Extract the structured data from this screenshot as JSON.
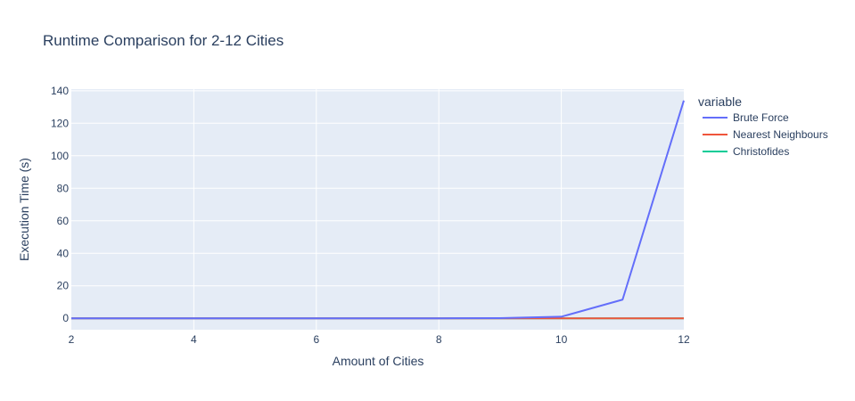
{
  "chart_data": {
    "type": "line",
    "title": "Runtime Comparison for 2-12 Cities",
    "xlabel": "Amount of Cities",
    "ylabel": "Execution Time (s)",
    "xlim": [
      2,
      12
    ],
    "ylim": [
      -7,
      141
    ],
    "x_ticks": [
      2,
      4,
      6,
      8,
      10,
      12
    ],
    "y_ticks": [
      0,
      20,
      40,
      60,
      80,
      100,
      120,
      140
    ],
    "grid": true,
    "legend": {
      "title": "variable",
      "placement": "right"
    },
    "x": [
      2,
      3,
      4,
      5,
      6,
      7,
      8,
      9,
      10,
      11,
      12
    ],
    "series": [
      {
        "name": "Brute Force",
        "color": "#636efa",
        "values": [
          0,
          0,
          0,
          0,
          0,
          0,
          0.01,
          0.1,
          1.0,
          11.5,
          134
        ]
      },
      {
        "name": "Nearest Neighbours",
        "color": "#ef553b",
        "values": [
          0,
          0,
          0,
          0,
          0,
          0,
          0,
          0,
          0,
          0,
          0
        ]
      },
      {
        "name": "Christofides",
        "color": "#00cc96",
        "values": [
          0,
          0,
          0,
          0,
          0,
          0,
          0,
          0,
          0,
          0,
          0
        ]
      }
    ]
  }
}
